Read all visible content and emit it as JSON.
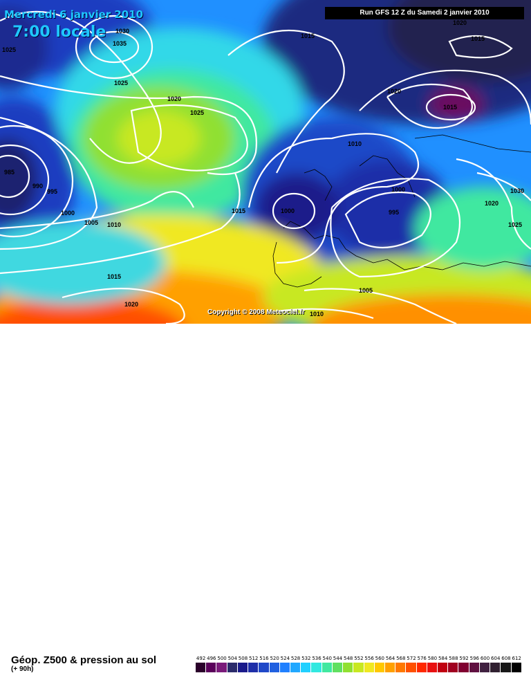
{
  "header": {
    "date": "Mercredi 6 janvier 2010",
    "time": "7:00 locale",
    "run": "Run GFS 12 Z du Samedi 2 janvier 2010"
  },
  "copyright": "Copyright © 2008 Meteociel.fr",
  "legend": {
    "title": "Géop. Z500 & pression au sol",
    "subtitle": "(+ 90h)",
    "scale_labels": [
      "492",
      "496",
      "500",
      "504",
      "508",
      "512",
      "516",
      "520",
      "524",
      "528",
      "532",
      "536",
      "540",
      "544",
      "548",
      "552",
      "556",
      "560",
      "564",
      "568",
      "572",
      "576",
      "580",
      "584",
      "588",
      "592",
      "596",
      "600",
      "604",
      "608",
      "612"
    ],
    "scale_colors": [
      "#2a002a",
      "#5a005a",
      "#7a1a7a",
      "#2a2a6a",
      "#1a1a8a",
      "#1e2ea8",
      "#1f48c8",
      "#2060e0",
      "#2080ff",
      "#20a8ff",
      "#20d0ff",
      "#30e8e0",
      "#40e8a0",
      "#60e060",
      "#90e030",
      "#c8e820",
      "#f0e820",
      "#ffc800",
      "#ffa000",
      "#ff7800",
      "#ff5000",
      "#ff2800",
      "#e81010",
      "#c00010",
      "#a00020",
      "#800030",
      "#601040",
      "#402040",
      "#302030",
      "#181818",
      "#000000"
    ]
  },
  "isobar_labels": [
    {
      "text": "1030"
    },
    {
      "text": "1035"
    },
    {
      "text": "1025"
    },
    {
      "text": "1025"
    },
    {
      "text": "1020"
    },
    {
      "text": "1025"
    },
    {
      "text": "1015"
    },
    {
      "text": "1020"
    },
    {
      "text": "1015"
    },
    {
      "text": "1020"
    },
    {
      "text": "1015"
    },
    {
      "text": "1010"
    },
    {
      "text": "985"
    },
    {
      "text": "990"
    },
    {
      "text": "995"
    },
    {
      "text": "1000"
    },
    {
      "text": "1005"
    },
    {
      "text": "1010"
    },
    {
      "text": "1015"
    },
    {
      "text": "1000"
    },
    {
      "text": "1000"
    },
    {
      "text": "995"
    },
    {
      "text": "1030"
    },
    {
      "text": "1020"
    },
    {
      "text": "1025"
    },
    {
      "text": "1015"
    },
    {
      "text": "1020"
    },
    {
      "text": "1005"
    },
    {
      "text": "1010"
    }
  ]
}
